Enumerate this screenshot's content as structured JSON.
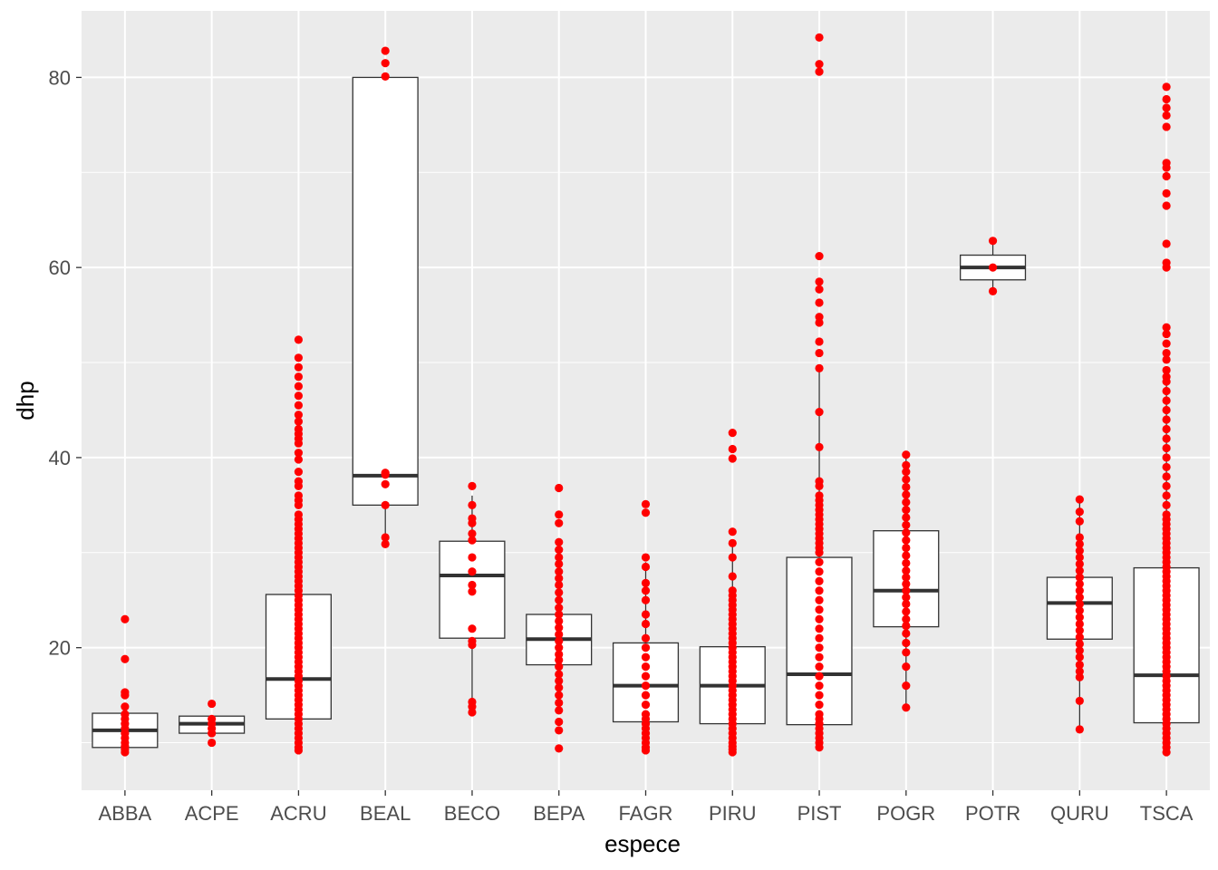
{
  "chart_data": {
    "type": "boxplot",
    "title": "",
    "xlabel": "espece",
    "ylabel": "dhp",
    "ylim": [
      5,
      87
    ],
    "yticks": [
      20,
      40,
      60,
      80
    ],
    "grid": true,
    "background": "#ebebeb",
    "point_color": "#ff0000",
    "categories": [
      "ABBA",
      "ACPE",
      "ACRU",
      "BEAL",
      "BECO",
      "BEPA",
      "FAGR",
      "PIRU",
      "PIST",
      "POGR",
      "POTR",
      "QURU",
      "TSCA"
    ],
    "boxes": [
      {
        "category": "ABBA",
        "min": 9.1,
        "q1": 9.5,
        "median": 11.3,
        "q3": 13.1,
        "max": 13.1
      },
      {
        "category": "ACPE",
        "min": 11.0,
        "q1": 11.0,
        "median": 12.0,
        "q3": 12.8,
        "max": 12.8
      },
      {
        "category": "ACRU",
        "min": 9.1,
        "q1": 12.5,
        "median": 16.7,
        "q3": 25.6,
        "max": 25.6
      },
      {
        "category": "BEAL",
        "min": 30.9,
        "q1": 35.0,
        "median": 38.1,
        "q3": 80.0,
        "max": 80.0
      },
      {
        "category": "BECO",
        "min": 13.2,
        "q1": 21.0,
        "median": 27.6,
        "q3": 31.2,
        "max": 36.0
      },
      {
        "category": "BEPA",
        "min": 18.2,
        "q1": 18.2,
        "median": 20.9,
        "q3": 23.5,
        "max": 23.5
      },
      {
        "category": "FAGR",
        "min": 12.2,
        "q1": 12.2,
        "median": 16.0,
        "q3": 20.5,
        "max": 29.0
      },
      {
        "category": "PIRU",
        "min": 12.0,
        "q1": 12.0,
        "median": 16.0,
        "q3": 20.1,
        "max": 31.0
      },
      {
        "category": "PIST",
        "min": 11.9,
        "q1": 11.9,
        "median": 17.2,
        "q3": 29.5,
        "max": 49.5
      },
      {
        "category": "POGR",
        "min": 13.7,
        "q1": 22.2,
        "median": 26.0,
        "q3": 32.3,
        "max": 40.2
      },
      {
        "category": "POTR",
        "min": 57.5,
        "q1": 58.7,
        "median": 60.0,
        "q3": 61.3,
        "max": 62.8
      },
      {
        "category": "QURU",
        "min": 11.4,
        "q1": 20.9,
        "median": 24.7,
        "q3": 27.4,
        "max": 35.6
      },
      {
        "category": "TSCA",
        "min": 12.1,
        "q1": 12.1,
        "median": 17.1,
        "q3": 28.4,
        "max": 49.0
      }
    ],
    "points": {
      "ABBA": [
        9.0,
        9.3,
        9.6,
        10.0,
        10.5,
        11.0,
        11.5,
        12.0,
        12.5,
        13.0,
        13.8,
        15.0,
        15.3,
        18.8,
        23.0
      ],
      "ACPE": [
        10.0,
        11.0,
        11.5,
        12.0,
        12.5,
        14.1
      ],
      "ACRU": [
        9.2,
        9.5,
        10,
        10.5,
        11,
        11.5,
        12,
        12.5,
        13,
        13.5,
        14,
        14.5,
        15,
        15.5,
        16,
        16.5,
        17,
        17.5,
        18,
        18.5,
        19,
        19.5,
        20,
        20.5,
        21,
        21.5,
        22,
        22.5,
        23,
        23.5,
        24,
        24.5,
        25,
        25.5,
        26,
        26.5,
        27,
        27.5,
        28,
        28.5,
        29,
        29.5,
        30,
        30.5,
        31,
        31.5,
        32,
        32.5,
        33,
        33.5,
        34,
        35,
        35.5,
        36,
        37,
        37.5,
        38.5,
        39.8,
        40.5,
        41.5,
        42,
        42.5,
        43,
        43.8,
        44.5,
        45.5,
        46.5,
        47.5,
        48.5,
        49.5,
        50.5,
        52.4
      ],
      "BEAL": [
        30.9,
        31.6,
        35.0,
        37.2,
        38.2,
        38.4,
        80.1,
        81.5,
        82.8
      ],
      "BECO": [
        13.2,
        13.8,
        14.3,
        20.3,
        20.7,
        22.0,
        25.9,
        26.6,
        28.0,
        29.5,
        31.3,
        32.0,
        33.1,
        33.6,
        35.0,
        37.0
      ],
      "BEPA": [
        9.4,
        11.3,
        12.2,
        13.4,
        14.2,
        15.0,
        15.8,
        16.5,
        17.2,
        18.0,
        18.7,
        19.3,
        20.0,
        20.7,
        21.4,
        22.1,
        22.8,
        23.5,
        24.2,
        25.0,
        25.8,
        26.6,
        27.3,
        28.0,
        28.8,
        29.5,
        30.3,
        31.1,
        33.1,
        34.0,
        36.8
      ],
      "FAGR": [
        9.2,
        9.5,
        10,
        10.5,
        11,
        11.5,
        12,
        12.5,
        13,
        14,
        15,
        16,
        17,
        18,
        19,
        20,
        21,
        22.5,
        23.5,
        25,
        26,
        26.8,
        28.5,
        29.5,
        34.2,
        35.1
      ],
      "PIRU": [
        9.0,
        9.3,
        9.6,
        10,
        10.5,
        11,
        11.5,
        12,
        12.5,
        13,
        13.5,
        14,
        14.5,
        15,
        15.5,
        16,
        16.5,
        17,
        17.5,
        18,
        18.5,
        19,
        19.5,
        20,
        20.5,
        21,
        21.5,
        22,
        22.5,
        23,
        23.5,
        24,
        24.5,
        25,
        25.5,
        26,
        27.5,
        29.5,
        31.0,
        32.2,
        39.9,
        40.9,
        42.6
      ],
      "PIST": [
        9.5,
        10,
        10.5,
        11,
        11.5,
        12,
        12.5,
        13,
        14,
        15,
        16,
        17,
        18,
        19,
        20,
        21,
        22,
        23,
        24,
        25,
        26,
        27,
        28,
        29,
        30,
        30.5,
        31,
        31.5,
        32,
        32.5,
        33,
        33.5,
        34,
        34.5,
        35,
        35.5,
        36,
        37,
        37.5,
        41.1,
        44.8,
        49.4,
        51.0,
        52.2,
        54.2,
        54.8,
        56.3,
        57.7,
        58.5,
        61.2,
        80.6,
        81.4,
        84.2
      ],
      "POGR": [
        13.7,
        16.0,
        18.0,
        19.5,
        20.5,
        21.5,
        22.3,
        23.0,
        23.8,
        24.6,
        25.3,
        26.0,
        26.7,
        27.4,
        28.1,
        28.9,
        29.7,
        30.5,
        31.3,
        32.1,
        32.9,
        33.7,
        34.5,
        35.3,
        36.1,
        36.9,
        37.7,
        38.5,
        39.2,
        40.3
      ],
      "POTR": [
        57.5,
        60.0,
        62.8
      ],
      "QURU": [
        11.4,
        14.4,
        16.9,
        17.5,
        18.2,
        19.0,
        19.7,
        20.4,
        21.1,
        21.8,
        22.5,
        23.2,
        23.9,
        24.6,
        25.3,
        26.0,
        26.7,
        27.4,
        28.1,
        28.8,
        29.5,
        30.2,
        30.9,
        31.6,
        33.3,
        34.3,
        35.6
      ],
      "TSCA": [
        9.0,
        9.5,
        10,
        10.5,
        11,
        11.5,
        12,
        12.5,
        13,
        13.5,
        14,
        14.5,
        15,
        15.5,
        16,
        16.5,
        17,
        17.5,
        18,
        18.5,
        19,
        19.5,
        20,
        20.5,
        21,
        21.5,
        22,
        22.5,
        23,
        23.5,
        24,
        24.5,
        25,
        25.5,
        26,
        26.5,
        27,
        27.5,
        28,
        28.5,
        29,
        29.5,
        30,
        30.5,
        31,
        31.5,
        32,
        32.5,
        33,
        33.5,
        34,
        35,
        36,
        37,
        38,
        39,
        40,
        41,
        42,
        43,
        44,
        45,
        46,
        47,
        48,
        48.5,
        49.2,
        50.3,
        51.0,
        52.0,
        53.0,
        53.7,
        60.0,
        60.5,
        62.5,
        66.5,
        67.8,
        69.6,
        70.5,
        71.0,
        74.8,
        76.0,
        76.8,
        77.7,
        79.0
      ]
    }
  }
}
